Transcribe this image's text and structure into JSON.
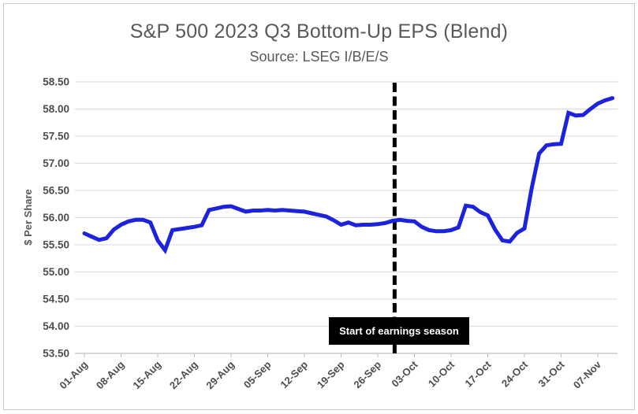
{
  "header": {
    "title": "S&P 500 2023 Q3 Bottom-Up EPS (Blend)",
    "subtitle": "Source: LSEG I/B/E/S",
    "text_color": "#595959"
  },
  "colors": {
    "line": "#1d23dd",
    "gridline": "#d9d9d9",
    "axis": "#bfbfbf",
    "tick_label": "#4d4d4d",
    "axis_title": "#595959",
    "annotation_bg": "#000000",
    "annotation_text": "#ffffff",
    "vline": "#000000"
  },
  "chart_data": {
    "type": "line",
    "title": "S&P 500 2023 Q3 Bottom-Up EPS (Blend)",
    "subtitle": "Source: LSEG I/B/E/S",
    "xlabel": "",
    "ylabel": "$ Per Share",
    "ylim": [
      53.5,
      58.5
    ],
    "grid": "horizontal",
    "legend_position": "none",
    "ytick_labels": [
      "58.50",
      "58.00",
      "57.50",
      "57.00",
      "56.50",
      "56.00",
      "55.50",
      "55.00",
      "54.50",
      "54.00",
      "53.50"
    ],
    "xtick_labels": [
      "01-Aug",
      "08-Aug",
      "15-Aug",
      "22-Aug",
      "29-Aug",
      "05-Sep",
      "12-Sep",
      "19-Sep",
      "26-Sep",
      "03-Oct",
      "10-Oct",
      "17-Oct",
      "24-Oct",
      "31-Oct",
      "07-Nov"
    ],
    "xticks_every_n_points": 5,
    "annotation": {
      "label": "Start of earnings season",
      "vline_at_index": 42.3
    },
    "series": [
      {
        "name": "Bottom-Up EPS (Blend)",
        "x": [
          "01-Aug",
          "02-Aug",
          "03-Aug",
          "04-Aug",
          "07-Aug",
          "08-Aug",
          "09-Aug",
          "10-Aug",
          "11-Aug",
          "14-Aug",
          "15-Aug",
          "16-Aug",
          "17-Aug",
          "18-Aug",
          "21-Aug",
          "22-Aug",
          "23-Aug",
          "24-Aug",
          "25-Aug",
          "28-Aug",
          "29-Aug",
          "30-Aug",
          "31-Aug",
          "01-Sep",
          "04-Sep",
          "05-Sep",
          "06-Sep",
          "07-Sep",
          "08-Sep",
          "11-Sep",
          "12-Sep",
          "13-Sep",
          "14-Sep",
          "15-Sep",
          "18-Sep",
          "19-Sep",
          "20-Sep",
          "21-Sep",
          "22-Sep",
          "25-Sep",
          "26-Sep",
          "27-Sep",
          "28-Sep",
          "29-Sep",
          "02-Oct",
          "03-Oct",
          "04-Oct",
          "05-Oct",
          "06-Oct",
          "09-Oct",
          "10-Oct",
          "11-Oct",
          "12-Oct",
          "13-Oct",
          "16-Oct",
          "17-Oct",
          "18-Oct",
          "19-Oct",
          "20-Oct",
          "23-Oct",
          "24-Oct",
          "25-Oct",
          "26-Oct",
          "27-Oct",
          "30-Oct",
          "31-Oct",
          "01-Nov",
          "02-Nov",
          "03-Nov",
          "06-Nov",
          "07-Nov",
          "08-Nov",
          "09-Nov"
        ],
        "values": [
          55.71,
          55.65,
          55.59,
          55.62,
          55.78,
          55.87,
          55.93,
          55.96,
          55.96,
          55.91,
          55.58,
          55.4,
          55.77,
          55.79,
          55.81,
          55.83,
          55.86,
          56.14,
          56.17,
          56.2,
          56.21,
          56.16,
          56.11,
          56.13,
          56.13,
          56.14,
          56.13,
          56.14,
          56.13,
          56.12,
          56.11,
          56.08,
          56.05,
          56.02,
          55.95,
          55.87,
          55.91,
          55.86,
          55.87,
          55.87,
          55.88,
          55.9,
          55.94,
          55.96,
          55.94,
          55.93,
          55.83,
          55.77,
          55.75,
          55.75,
          55.77,
          55.82,
          56.22,
          56.2,
          56.1,
          56.04,
          55.78,
          55.58,
          55.56,
          55.72,
          55.8,
          56.55,
          57.18,
          57.33,
          57.35,
          57.36,
          57.93,
          57.88,
          57.89,
          58.0,
          58.1,
          58.16,
          58.2
        ]
      }
    ]
  }
}
